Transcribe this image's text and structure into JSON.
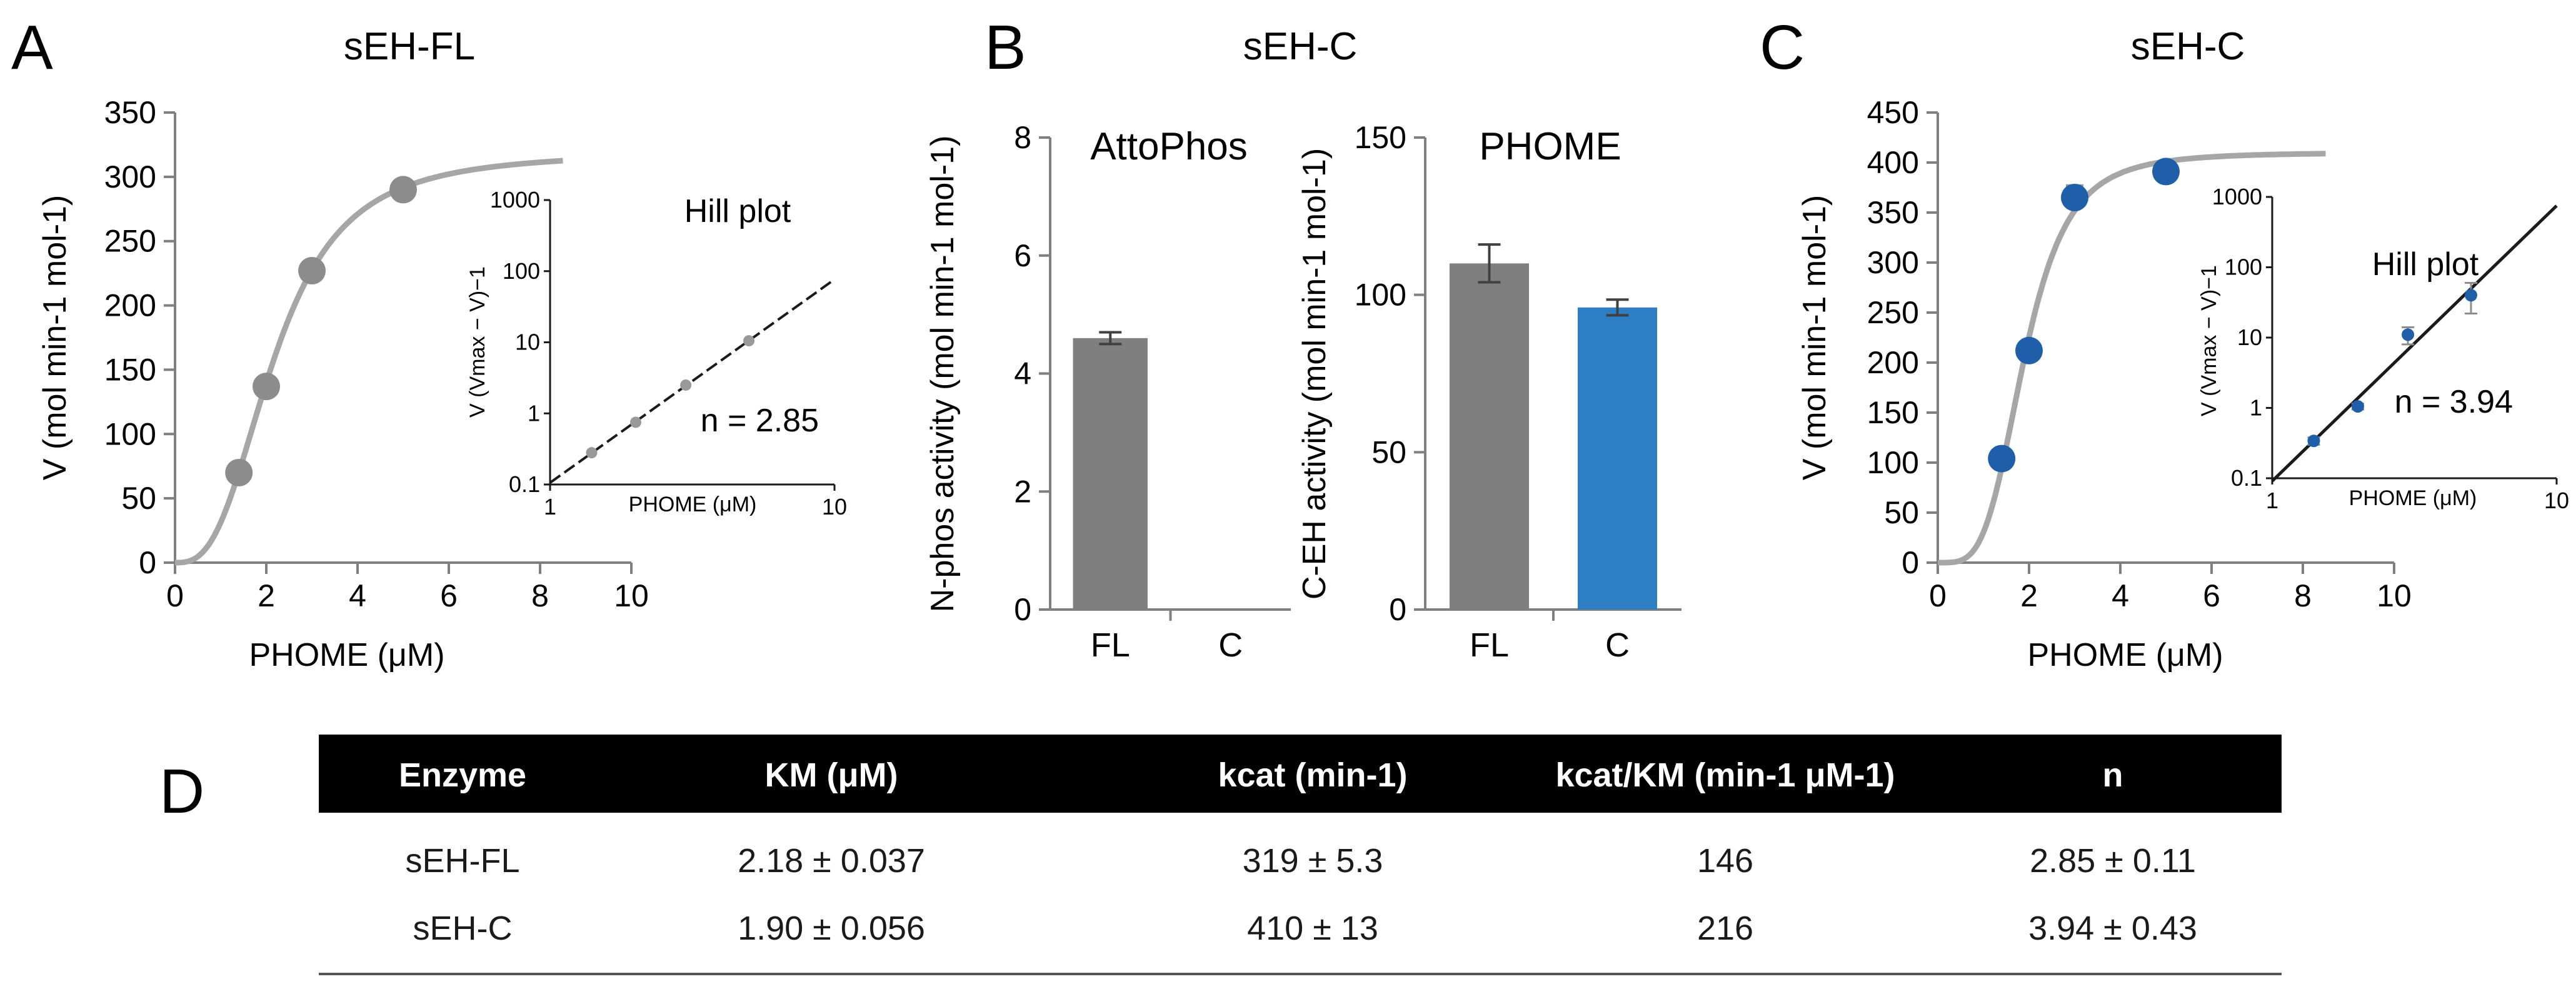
{
  "labels": {
    "A": "A",
    "B": "B",
    "C": "C",
    "D": "D"
  },
  "chart_data": [
    {
      "id": "A",
      "type": "scatter",
      "title": "sEH-FL",
      "xlabel": "PHOME (μM)",
      "ylabel": "V (mol min-1 mol-1)",
      "xlim": [
        0,
        10
      ],
      "ylim": [
        0,
        350
      ],
      "xticks": [
        0,
        2,
        4,
        6,
        8,
        10
      ],
      "yticks": [
        0,
        50,
        100,
        150,
        200,
        250,
        300,
        350
      ],
      "points": {
        "x": [
          1.4,
          2.0,
          3.0,
          5.0
        ],
        "y": [
          70,
          137,
          227,
          290
        ]
      },
      "fit": {
        "vmax": 319,
        "km": 2.18,
        "n": 2.85,
        "x_end": 8.5
      },
      "point_color": "#8c8c8c",
      "curve_color": "#a6a6a6",
      "inset": {
        "title": "Hill plot",
        "xlabel": "PHOME (μM)",
        "ylabel": "V (Vmax − V)−1",
        "xlim": [
          1,
          10
        ],
        "ylim": [
          0.1,
          1000
        ],
        "xticks": [
          "1",
          "10"
        ],
        "yticks": [
          "0.1",
          "1",
          "10",
          "100",
          "1000"
        ],
        "log": true,
        "points": {
          "x": [
            1.4,
            2.0,
            3.0,
            5.0
          ],
          "y": [
            0.28,
            0.75,
            2.5,
            10.5
          ]
        },
        "annotation": "n = 2.85"
      }
    },
    {
      "id": "B1",
      "type": "bar",
      "group_title": "sEH-C",
      "title": "AttoPhos",
      "categories": [
        "FL",
        "C"
      ],
      "values": [
        4.6,
        0
      ],
      "errors": [
        0.1,
        0
      ],
      "ylabel": "N-phos activity (mol min-1 mol-1)",
      "ylim": [
        0,
        8
      ],
      "yticks": [
        0,
        2,
        4,
        6,
        8
      ],
      "colors": [
        "#7f7f7f",
        "#7f7f7f"
      ]
    },
    {
      "id": "B2",
      "type": "bar",
      "title": "PHOME",
      "categories": [
        "FL",
        "C"
      ],
      "values": [
        110,
        96
      ],
      "errors": [
        6,
        2.5
      ],
      "ylabel": "C-EH activity (mol min-1 mol-1)",
      "ylim": [
        0,
        150
      ],
      "yticks": [
        0,
        50,
        100,
        150
      ],
      "colors": [
        "#7f7f7f",
        "#2e7ec4"
      ]
    },
    {
      "id": "C",
      "type": "scatter",
      "title": "sEH-C",
      "xlabel": "PHOME (μM)",
      "ylabel": "V (mol min-1 mol-1)",
      "xlim": [
        0,
        10
      ],
      "ylim": [
        0,
        450
      ],
      "xticks": [
        0,
        2,
        4,
        6,
        8,
        10
      ],
      "yticks": [
        0,
        50,
        100,
        150,
        200,
        250,
        300,
        350,
        400,
        450
      ],
      "points": {
        "x": [
          1.4,
          2.0,
          3.0,
          5.0
        ],
        "y": [
          104,
          212,
          365,
          391
        ]
      },
      "errors": [
        6,
        8,
        12,
        5
      ],
      "fit": {
        "vmax": 410,
        "km": 1.9,
        "n": 3.94,
        "x_end": 8.5
      },
      "point_color": "#1f5faa",
      "curve_color": "#a6a6a6",
      "inset": {
        "title": "Hill plot",
        "xlabel": "PHOME (μM)",
        "ylabel": "V (Vmax − V)−1",
        "xlim": [
          1,
          10
        ],
        "ylim": [
          0.1,
          1000
        ],
        "xticks": [
          "1",
          "10"
        ],
        "yticks": [
          "0.1",
          "1",
          "10",
          "100",
          "1000"
        ],
        "log": true,
        "points": {
          "x": [
            1.4,
            2.0,
            3.0,
            5.0
          ],
          "y": [
            0.34,
            1.05,
            11,
            40
          ]
        },
        "errors_lo": [
          0.3,
          0.95,
          8,
          22
        ],
        "errors_hi": [
          0.38,
          1.15,
          14,
          60
        ],
        "annotation": "n = 3.94"
      }
    },
    {
      "id": "D",
      "type": "table",
      "headers": [
        "Enzyme",
        "KM (μM)",
        "kcat (min-1)",
        "kcat/KM (min-1 μM-1)",
        "n"
      ],
      "rows": [
        [
          "sEH-FL",
          "2.18 ±  0.037",
          "319 ±  5.3",
          "146",
          "2.85 ±  0.11"
        ],
        [
          "sEH-C",
          "1.90 ±  0.056",
          "410 ±  13",
          "216",
          "3.94 ±  0.43"
        ]
      ]
    }
  ]
}
